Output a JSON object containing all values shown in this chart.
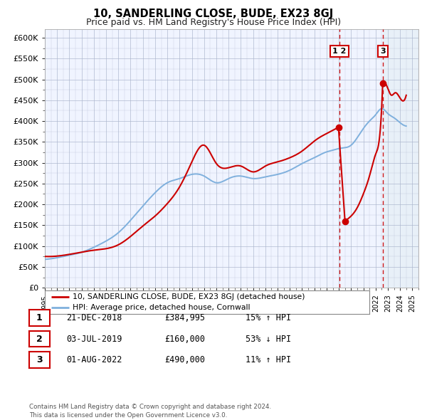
{
  "title": "10, SANDERLING CLOSE, BUDE, EX23 8GJ",
  "subtitle": "Price paid vs. HM Land Registry's House Price Index (HPI)",
  "legend_line1": "10, SANDERLING CLOSE, BUDE, EX23 8GJ (detached house)",
  "legend_line2": "HPI: Average price, detached house, Cornwall",
  "footer": "Contains HM Land Registry data © Crown copyright and database right 2024.\nThis data is licensed under the Open Government Licence v3.0.",
  "transactions": [
    {
      "num": 1,
      "date": "21-DEC-2018",
      "price": "£384,995",
      "hpi": "15% ↑ HPI",
      "x": 2018.97,
      "value": 384995
    },
    {
      "num": 2,
      "date": "03-JUL-2019",
      "price": "£160,000",
      "hpi": "53% ↓ HPI",
      "x": 2019.5,
      "value": 160000
    },
    {
      "num": 3,
      "date": "01-AUG-2022",
      "price": "£490,000",
      "hpi": "11% ↑ HPI",
      "x": 2022.58,
      "value": 490000
    }
  ],
  "vline12_x": 2019.05,
  "vline3_x": 2022.58,
  "shade_start": 2022.58,
  "shade_end": 2025.5,
  "red_color": "#cc0000",
  "blue_color": "#7fb0dd",
  "shade_color": "#e8f0f8",
  "background_color": "#ffffff",
  "plot_bg_color": "#f0f4ff",
  "grid_color": "#aab4cc",
  "ylim": [
    0,
    620000
  ],
  "xlim": [
    1995,
    2025.5
  ],
  "yticks": [
    0,
    50000,
    100000,
    150000,
    200000,
    250000,
    300000,
    350000,
    400000,
    450000,
    500000,
    550000,
    600000
  ],
  "ytick_labels": [
    "£0",
    "£50K",
    "£100K",
    "£150K",
    "£200K",
    "£250K",
    "£300K",
    "£350K",
    "£400K",
    "£450K",
    "£500K",
    "£550K",
    "£600K"
  ],
  "xticks": [
    1995,
    1996,
    1997,
    1998,
    1999,
    2000,
    2001,
    2002,
    2003,
    2004,
    2005,
    2006,
    2007,
    2008,
    2009,
    2010,
    2011,
    2012,
    2013,
    2014,
    2015,
    2016,
    2017,
    2018,
    2019,
    2020,
    2021,
    2022,
    2023,
    2024,
    2025
  ],
  "hpi_years": [
    1995,
    1996,
    1997,
    1998,
    1999,
    2000,
    2001,
    2002,
    2003,
    2004,
    2005,
    2006,
    2007,
    2008,
    2009,
    2010,
    2011,
    2012,
    2013,
    2014,
    2015,
    2016,
    2017,
    2018,
    2018.5,
    2019,
    2019.5,
    2020,
    2020.5,
    2021,
    2021.5,
    2022,
    2022.5,
    2023,
    2023.5,
    2024,
    2024.5
  ],
  "hpi_values": [
    68000,
    72000,
    78000,
    85000,
    97000,
    112000,
    132000,
    162000,
    196000,
    228000,
    252000,
    262000,
    272000,
    268000,
    252000,
    262000,
    268000,
    262000,
    266000,
    272000,
    282000,
    298000,
    312000,
    326000,
    330000,
    334000,
    336000,
    342000,
    360000,
    382000,
    400000,
    415000,
    430000,
    418000,
    408000,
    396000,
    388000
  ],
  "price_years_before": [
    1995,
    1997,
    1999,
    2001,
    2003,
    2004,
    2005,
    2006,
    2007,
    2008,
    2009,
    2010,
    2011,
    2012,
    2013,
    2014,
    2015,
    2016,
    2017,
    2017.5,
    2018,
    2018.5,
    2018.97
  ],
  "price_values_before": [
    75000,
    80000,
    90000,
    103000,
    148000,
    172000,
    202000,
    242000,
    302000,
    342000,
    298000,
    288000,
    292000,
    278000,
    292000,
    302000,
    312000,
    328000,
    352000,
    362000,
    370000,
    378000,
    384995
  ],
  "price_years_after1": [
    2019.5,
    2020,
    2020.5,
    2021,
    2021.5,
    2022,
    2022.3,
    2022.58
  ],
  "price_values_after1": [
    160000,
    172000,
    192000,
    225000,
    268000,
    320000,
    355000,
    490000
  ],
  "price_years_after2": [
    2022.58,
    2023,
    2023.3,
    2023.6,
    2024,
    2024.5
  ],
  "price_values_after2": [
    490000,
    478000,
    462000,
    468000,
    455000,
    462000
  ]
}
